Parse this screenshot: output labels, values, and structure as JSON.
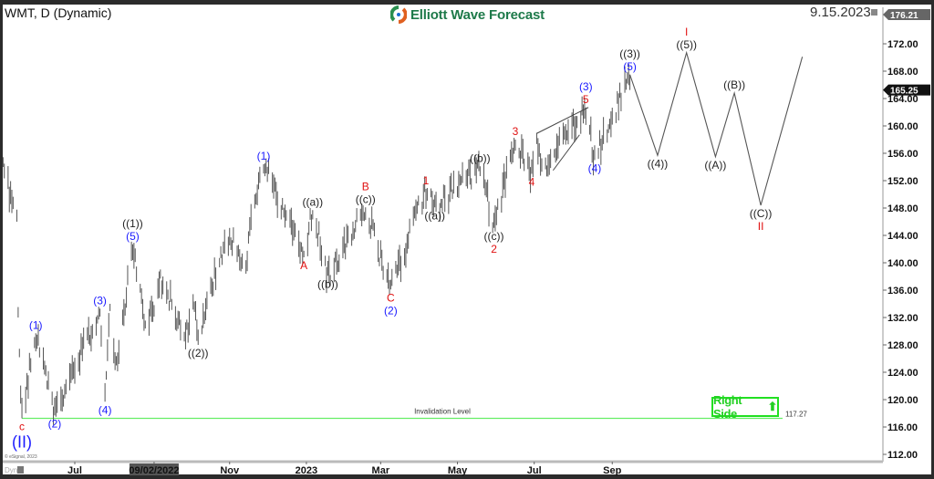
{
  "header": {
    "title": "WMT, D (Dynamic)",
    "logo_text": "Elliott Wave Forecast",
    "date": "9.15.2023",
    "top_price_tag": "176.21"
  },
  "footer": {
    "copyright": "© eSignal, 2023",
    "dyn_label": "Dyn"
  },
  "annotations": {
    "invalidation_label": "Invalidation Level",
    "invalidation_value": "117.27",
    "invalidation_price": 117.27,
    "right_side_label": "Right Side",
    "right_side_icon": "arrow-up-icon"
  },
  "colors": {
    "blue": "#1a1aff",
    "red": "#e01010",
    "black": "#222222",
    "green_line": "#66ee66",
    "bar": "#555555",
    "accent": "#1e7a4a"
  },
  "chart_data": {
    "type": "ohlc-bar",
    "symbol": "WMT",
    "interval": "D",
    "ylim": [
      110,
      176.21
    ],
    "y_ticks": [
      112,
      116,
      120,
      124,
      128,
      132,
      136,
      140,
      144,
      148,
      152,
      156,
      160,
      164,
      168,
      172
    ],
    "y_tick_labels": [
      "112.00",
      "116.00",
      "120.00",
      "124.00",
      "128.00",
      "132.00",
      "136.00",
      "140.00",
      "144.00",
      "148.00",
      "152.00",
      "156.00",
      "160.00",
      "164.00",
      "168.00",
      "172.00"
    ],
    "x_ticks": [
      {
        "label": "Jul",
        "date": "2022-07-01"
      },
      {
        "label": "09/02/2022",
        "date": "2022-09-02",
        "highlight": true
      },
      {
        "label": "Nov",
        "date": "2022-11-01"
      },
      {
        "label": "2023",
        "date": "2023-01-01"
      },
      {
        "label": "Mar",
        "date": "2023-03-01"
      },
      {
        "label": "May",
        "date": "2023-05-01"
      },
      {
        "label": "Jul",
        "date": "2023-07-01"
      },
      {
        "label": "Sep",
        "date": "2023-09-01"
      }
    ],
    "last_price": "165.25",
    "last_price_value": 165.25,
    "price_pivots": [
      [
        "2022-05-05",
        154
      ],
      [
        "2022-05-16",
        146
      ],
      [
        "2022-05-17",
        132
      ],
      [
        "2022-05-20",
        117.27
      ],
      [
        "2022-05-31",
        129.7
      ],
      [
        "2022-06-15",
        117.7
      ],
      [
        "2022-07-21",
        133.3
      ],
      [
        "2022-07-25",
        119.7
      ],
      [
        "2022-07-29",
        134
      ],
      [
        "2022-08-03",
        125
      ],
      [
        "2022-08-16",
        142.7
      ],
      [
        "2022-08-26",
        130.4
      ],
      [
        "2022-09-09",
        138
      ],
      [
        "2022-09-26",
        128.5
      ],
      [
        "2022-10-05",
        134.4
      ],
      [
        "2022-10-07",
        128
      ],
      [
        "2022-10-24",
        140.7
      ],
      [
        "2022-11-03",
        143.3
      ],
      [
        "2022-11-14",
        138.4
      ],
      [
        "2022-11-16",
        144.6
      ],
      [
        "2022-11-21",
        150
      ],
      [
        "2022-11-28",
        154.4
      ],
      [
        "2022-12-30",
        140.8
      ],
      [
        "2023-01-06",
        147.7
      ],
      [
        "2023-01-18",
        138.1
      ],
      [
        "2023-02-17",
        148.1
      ],
      [
        "2023-03-09",
        136.1
      ],
      [
        "2023-04-06",
        150.8
      ],
      [
        "2023-04-13",
        148.1
      ],
      [
        "2023-05-19",
        154.1
      ],
      [
        "2023-05-30",
        145.1
      ],
      [
        "2023-06-16",
        158
      ],
      [
        "2023-06-29",
        153
      ],
      [
        "2023-07-03",
        159
      ],
      [
        "2023-07-07",
        153.3
      ],
      [
        "2023-08-11",
        162.7
      ],
      [
        "2023-08-18",
        155
      ],
      [
        "2023-09-15",
        167.5
      ]
    ],
    "projection_path": [
      [
        "2023-09-15",
        167.5
      ],
      [
        "2023-10-07",
        155.7
      ],
      [
        "2023-10-30",
        170.7
      ],
      [
        "2023-11-22",
        155.5
      ],
      [
        "2023-12-07",
        164.8
      ],
      [
        "2023-12-28",
        148.4
      ],
      [
        "2024-01-30",
        170.1
      ]
    ],
    "diagonal_lines": [
      [
        [
          "2023-07-03",
          158.9
        ],
        [
          "2023-08-13",
          162.7
        ]
      ],
      [
        [
          "2023-07-16",
          153.5
        ],
        [
          "2023-08-06",
          158.7
        ]
      ]
    ],
    "wave_labels": [
      {
        "date": "2022-05-20",
        "price": 117.27,
        "side": "below",
        "lines": [
          {
            "text": "c",
            "color": "red"
          },
          {
            "text": "(II)",
            "color": "blue",
            "big": true
          }
        ]
      },
      {
        "date": "2022-05-31",
        "price": 129.7,
        "side": "above",
        "lines": [
          {
            "text": "(1)",
            "color": "blue"
          }
        ]
      },
      {
        "date": "2022-06-15",
        "price": 117.7,
        "side": "below",
        "lines": [
          {
            "text": "(2)",
            "color": "blue"
          }
        ]
      },
      {
        "date": "2022-07-21",
        "price": 133.3,
        "side": "above",
        "lines": [
          {
            "text": "(3)",
            "color": "blue"
          }
        ]
      },
      {
        "date": "2022-07-25",
        "price": 119.7,
        "side": "below",
        "lines": [
          {
            "text": "(4)",
            "color": "blue"
          }
        ]
      },
      {
        "date": "2022-08-16",
        "price": 142.7,
        "side": "above",
        "lines": [
          {
            "text": "(5)",
            "color": "blue"
          },
          {
            "text": "((1))",
            "color": "black"
          }
        ]
      },
      {
        "date": "2022-10-07",
        "price": 128,
        "side": "below",
        "lines": [
          {
            "text": "((2))",
            "color": "black"
          }
        ]
      },
      {
        "date": "2022-11-28",
        "price": 154.4,
        "side": "above",
        "lines": [
          {
            "text": "(1)",
            "color": "blue"
          }
        ]
      },
      {
        "date": "2022-12-30",
        "price": 140.8,
        "side": "below",
        "lines": [
          {
            "text": "A",
            "color": "red"
          }
        ]
      },
      {
        "date": "2023-01-06",
        "price": 147.7,
        "side": "above",
        "lines": [
          {
            "text": "((a))",
            "color": "black"
          }
        ]
      },
      {
        "date": "2023-01-18",
        "price": 138.1,
        "side": "below",
        "lines": [
          {
            "text": "((b))",
            "color": "black"
          }
        ]
      },
      {
        "date": "2023-02-17",
        "price": 148.1,
        "side": "above",
        "lines": [
          {
            "text": "((c))",
            "color": "black"
          },
          {
            "text": "B",
            "color": "red"
          }
        ]
      },
      {
        "date": "2023-03-09",
        "price": 136.1,
        "side": "below",
        "lines": [
          {
            "text": "C",
            "color": "red"
          },
          {
            "text": "(2)",
            "color": "blue"
          }
        ]
      },
      {
        "date": "2023-04-06",
        "price": 150.8,
        "side": "above",
        "lines": [
          {
            "text": "1",
            "color": "red"
          }
        ]
      },
      {
        "date": "2023-04-13",
        "price": 148.1,
        "side": "below",
        "lines": [
          {
            "text": "((a))",
            "color": "black"
          }
        ]
      },
      {
        "date": "2023-05-19",
        "price": 154.1,
        "side": "above",
        "lines": [
          {
            "text": "((b))",
            "color": "black"
          }
        ]
      },
      {
        "date": "2023-05-30",
        "price": 145.1,
        "side": "below",
        "lines": [
          {
            "text": "((c))",
            "color": "black"
          },
          {
            "text": "2",
            "color": "red"
          }
        ]
      },
      {
        "date": "2023-06-16",
        "price": 158,
        "side": "above",
        "lines": [
          {
            "text": "3",
            "color": "red"
          }
        ]
      },
      {
        "date": "2023-06-29",
        "price": 153,
        "side": "below",
        "lines": [
          {
            "text": "4",
            "color": "red"
          }
        ]
      },
      {
        "date": "2023-08-11",
        "price": 162.7,
        "side": "above",
        "lines": [
          {
            "text": "5",
            "color": "red"
          },
          {
            "text": "(3)",
            "color": "blue"
          }
        ]
      },
      {
        "date": "2023-08-18",
        "price": 155,
        "side": "below",
        "lines": [
          {
            "text": "(4)",
            "color": "blue"
          }
        ]
      },
      {
        "date": "2023-09-15",
        "price": 167.5,
        "side": "above",
        "lines": [
          {
            "text": "(5)",
            "color": "blue"
          },
          {
            "text": "((3))",
            "color": "black"
          }
        ]
      },
      {
        "date": "2023-10-07",
        "price": 155.7,
        "side": "below",
        "lines": [
          {
            "text": "((4))",
            "color": "black"
          }
        ]
      },
      {
        "date": "2023-10-30",
        "price": 170.7,
        "side": "above",
        "lines": [
          {
            "text": "((5))",
            "color": "black"
          },
          {
            "text": "I",
            "color": "red"
          }
        ]
      },
      {
        "date": "2023-11-22",
        "price": 155.5,
        "side": "below",
        "lines": [
          {
            "text": "((A))",
            "color": "black"
          }
        ]
      },
      {
        "date": "2023-12-07",
        "price": 164.8,
        "side": "above",
        "lines": [
          {
            "text": "((B))",
            "color": "black"
          }
        ]
      },
      {
        "date": "2023-12-28",
        "price": 148.4,
        "side": "below",
        "lines": [
          {
            "text": "((C))",
            "color": "black"
          },
          {
            "text": "II",
            "color": "red"
          }
        ]
      }
    ]
  }
}
